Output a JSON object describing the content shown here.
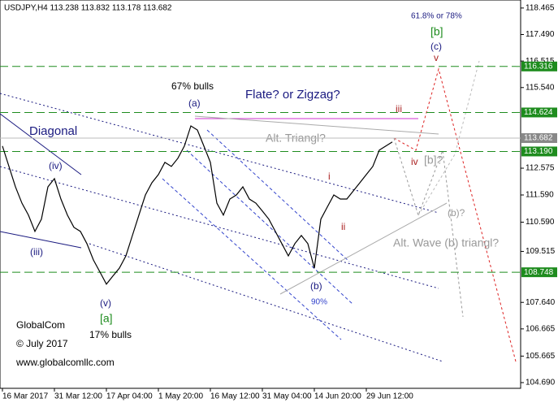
{
  "chart_data": {
    "type": "line",
    "title": "USDJPY,H4  113.238 113.832 113.178 113.682",
    "categories": [
      "16 Mar 2017",
      null,
      null,
      null,
      null,
      null,
      null,
      null,
      "31 Mar 12:00",
      null,
      null,
      null,
      null,
      null,
      null,
      null,
      "17 Apr 04:00",
      null,
      null,
      null,
      null,
      null,
      null,
      null,
      "1 May 20:00",
      null,
      null,
      null,
      null,
      null,
      null,
      null,
      "16 May 12:00",
      null,
      null,
      null,
      null,
      null,
      null,
      null,
      "31 May 04:00",
      null,
      null,
      null,
      null,
      null,
      null,
      null,
      "14 Jun 20:00",
      null,
      null,
      null,
      null,
      null,
      null,
      null,
      "29 Jun 12:00",
      null,
      null,
      null,
      null
    ],
    "values": [
      113.39,
      112.64,
      111.89,
      111.29,
      110.85,
      110.25,
      110.7,
      111.89,
      112.19,
      111.44,
      110.85,
      110.4,
      110.25,
      109.8,
      109.2,
      108.76,
      108.31,
      108.61,
      108.9,
      109.35,
      110.1,
      110.85,
      111.59,
      112.04,
      112.34,
      112.79,
      112.64,
      112.94,
      113.39,
      114.13,
      113.98,
      113.39,
      112.79,
      111.29,
      110.85,
      111.44,
      111.59,
      111.89,
      111.44,
      111.29,
      111.0,
      110.7,
      110.25,
      109.8,
      109.35,
      109.8,
      110.1,
      109.8,
      108.9,
      110.7,
      111.15,
      111.59,
      111.44,
      111.44,
      111.74,
      112.04,
      112.34,
      112.64,
      113.24,
      113.39,
      113.54
    ],
    "color": "#000000",
    "ylim": [
      104.48,
      118.76
    ],
    "yticks": [
      118.465,
      {
        "value": 117.49,
        "label": "117.490"
      },
      116.515,
      {
        "value": 115.54,
        "label": "115.540"
      },
      112.575,
      {
        "value": 111.59,
        "label": "111.590"
      },
      {
        "value": 110.59,
        "label": "110.590"
      },
      109.515,
      {
        "value": 107.64,
        "label": "107.640"
      },
      106.665,
      105.665,
      {
        "value": 104.69,
        "label": "104.690"
      }
    ],
    "levels": [
      116.316,
      114.624,
      {
        "value": 113.19,
        "label": "113.190"
      },
      108.748
    ],
    "level_color": "#1e8c1e",
    "last_price": 113.682,
    "annotations": [
      "Diagonal",
      "(iv)",
      "(iii)",
      "(v)",
      "[a]",
      "17% bulls",
      "GlobalCom",
      "© July 2017",
      "www.globalcomllc.com",
      "67% bulls",
      "(a)",
      "Flate? or Zigzag?",
      "Alt. Triangl?",
      "iii",
      "i",
      "ii",
      "(b)",
      "90%",
      "Alt. Wave (b) triangl?",
      "(b)?",
      "[b]?",
      "iv",
      "v",
      "61.8% or 78%",
      "[b]",
      "(c)"
    ]
  }
}
